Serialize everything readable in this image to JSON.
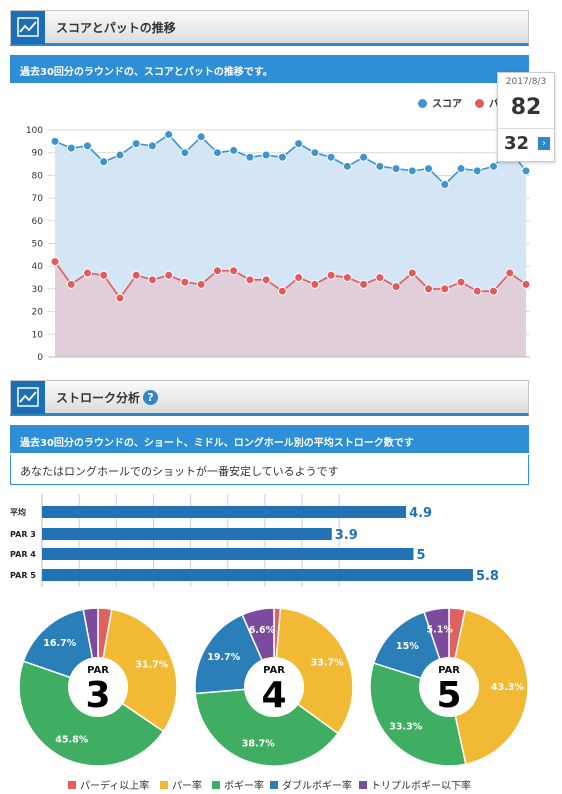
{
  "section1": {
    "title": "スコアとパットの推移",
    "subtitle": "過去30回分のラウンドの、スコアとパットの推移です。"
  },
  "legend": {
    "score_label": "スコア",
    "putt_label": "パ"
  },
  "colors": {
    "score": "#3d94cf",
    "putt": "#e35a5a",
    "score_fill": "#d4e6f5",
    "putt_fill": "#e0cfdb",
    "bar": "#2272b4",
    "accent": "#2f8fd6"
  },
  "tooltip": {
    "date": "2017/8/3",
    "score": "82",
    "putt": "32",
    "next_icon": "›"
  },
  "section2": {
    "title": "ストローク分析",
    "help_icon": "?",
    "subtitle": "過去30回分のラウンドの、ショート、ミドル、ロングホール別の平均ストローク数です",
    "message": "あなたはロングホールでのショットが一番安定しているようです"
  },
  "pie_legend": [
    "パーディ以上率",
    "パー率",
    "ボギー率",
    "ダブルボギー率",
    "トリプルボギー以下率"
  ],
  "chart_data": [
    {
      "type": "line",
      "yticks": [
        "0",
        "10",
        "20",
        "30",
        "40",
        "50",
        "60",
        "70",
        "80",
        "90",
        "100"
      ],
      "ylim": [
        0,
        100
      ],
      "series": [
        {
          "name": "スコア",
          "values": [
            95,
            92,
            93,
            86,
            89,
            94,
            93,
            98,
            90,
            97,
            90,
            91,
            88,
            89,
            88,
            94,
            90,
            88,
            84,
            88,
            84,
            83,
            82,
            83,
            76,
            83,
            82,
            84,
            91,
            82
          ]
        },
        {
          "name": "パ",
          "values": [
            42,
            32,
            37,
            36,
            26,
            36,
            34,
            36,
            33,
            32,
            38,
            38,
            34,
            34,
            29,
            35,
            32,
            36,
            35,
            32,
            35,
            31,
            37,
            30,
            30,
            33,
            29,
            29,
            37,
            32
          ]
        }
      ]
    },
    {
      "type": "bar",
      "categories": [
        "平均",
        "PAR 3",
        "PAR 4",
        "PAR 5"
      ],
      "values": [
        4.9,
        3.9,
        5,
        5.8
      ],
      "value_labels": [
        "4.9",
        "3.9",
        "5",
        "5.8"
      ]
    },
    {
      "type": "pie",
      "center_top": "PAR",
      "center_num": "3",
      "slices": [
        {
          "label": "パーディ以上率",
          "value": 2.8,
          "color": "#e06060",
          "text": ""
        },
        {
          "label": "パー率",
          "value": 31.7,
          "color": "#f1b934",
          "text": "31.7%"
        },
        {
          "label": "ボギー率",
          "value": 45.8,
          "color": "#3fae62",
          "text": "45.8%"
        },
        {
          "label": "ダブルボギー率",
          "value": 16.7,
          "color": "#2a7fb8",
          "text": "16.7%"
        },
        {
          "label": "トリプルボギー以下率",
          "value": 3.0,
          "color": "#7b4b9e",
          "text": ""
        }
      ]
    },
    {
      "type": "pie",
      "center_top": "PAR",
      "center_num": "4",
      "slices": [
        {
          "label": "パーディ以上率",
          "value": 1.3,
          "color": "#e06060",
          "text": ""
        },
        {
          "label": "パー率",
          "value": 33.7,
          "color": "#f1b934",
          "text": "33.7%"
        },
        {
          "label": "ボギー率",
          "value": 38.7,
          "color": "#3fae62",
          "text": "38.7%"
        },
        {
          "label": "ダブルボギー率",
          "value": 19.7,
          "color": "#2a7fb8",
          "text": "19.7%"
        },
        {
          "label": "トリプルボギー以下率",
          "value": 6.6,
          "color": "#7b4b9e",
          "text": "6.6%"
        }
      ]
    },
    {
      "type": "pie",
      "center_top": "PAR",
      "center_num": "5",
      "slices": [
        {
          "label": "パーディ以上率",
          "value": 3.3,
          "color": "#e06060",
          "text": ""
        },
        {
          "label": "パー率",
          "value": 43.3,
          "color": "#f1b934",
          "text": "43.3%"
        },
        {
          "label": "ボギー率",
          "value": 33.3,
          "color": "#3fae62",
          "text": "33.3%"
        },
        {
          "label": "ダブルボギー率",
          "value": 15,
          "color": "#2a7fb8",
          "text": "15%"
        },
        {
          "label": "トリプルボギー以下率",
          "value": 5.1,
          "color": "#7b4b9e",
          "text": "5.1%"
        }
      ]
    }
  ]
}
